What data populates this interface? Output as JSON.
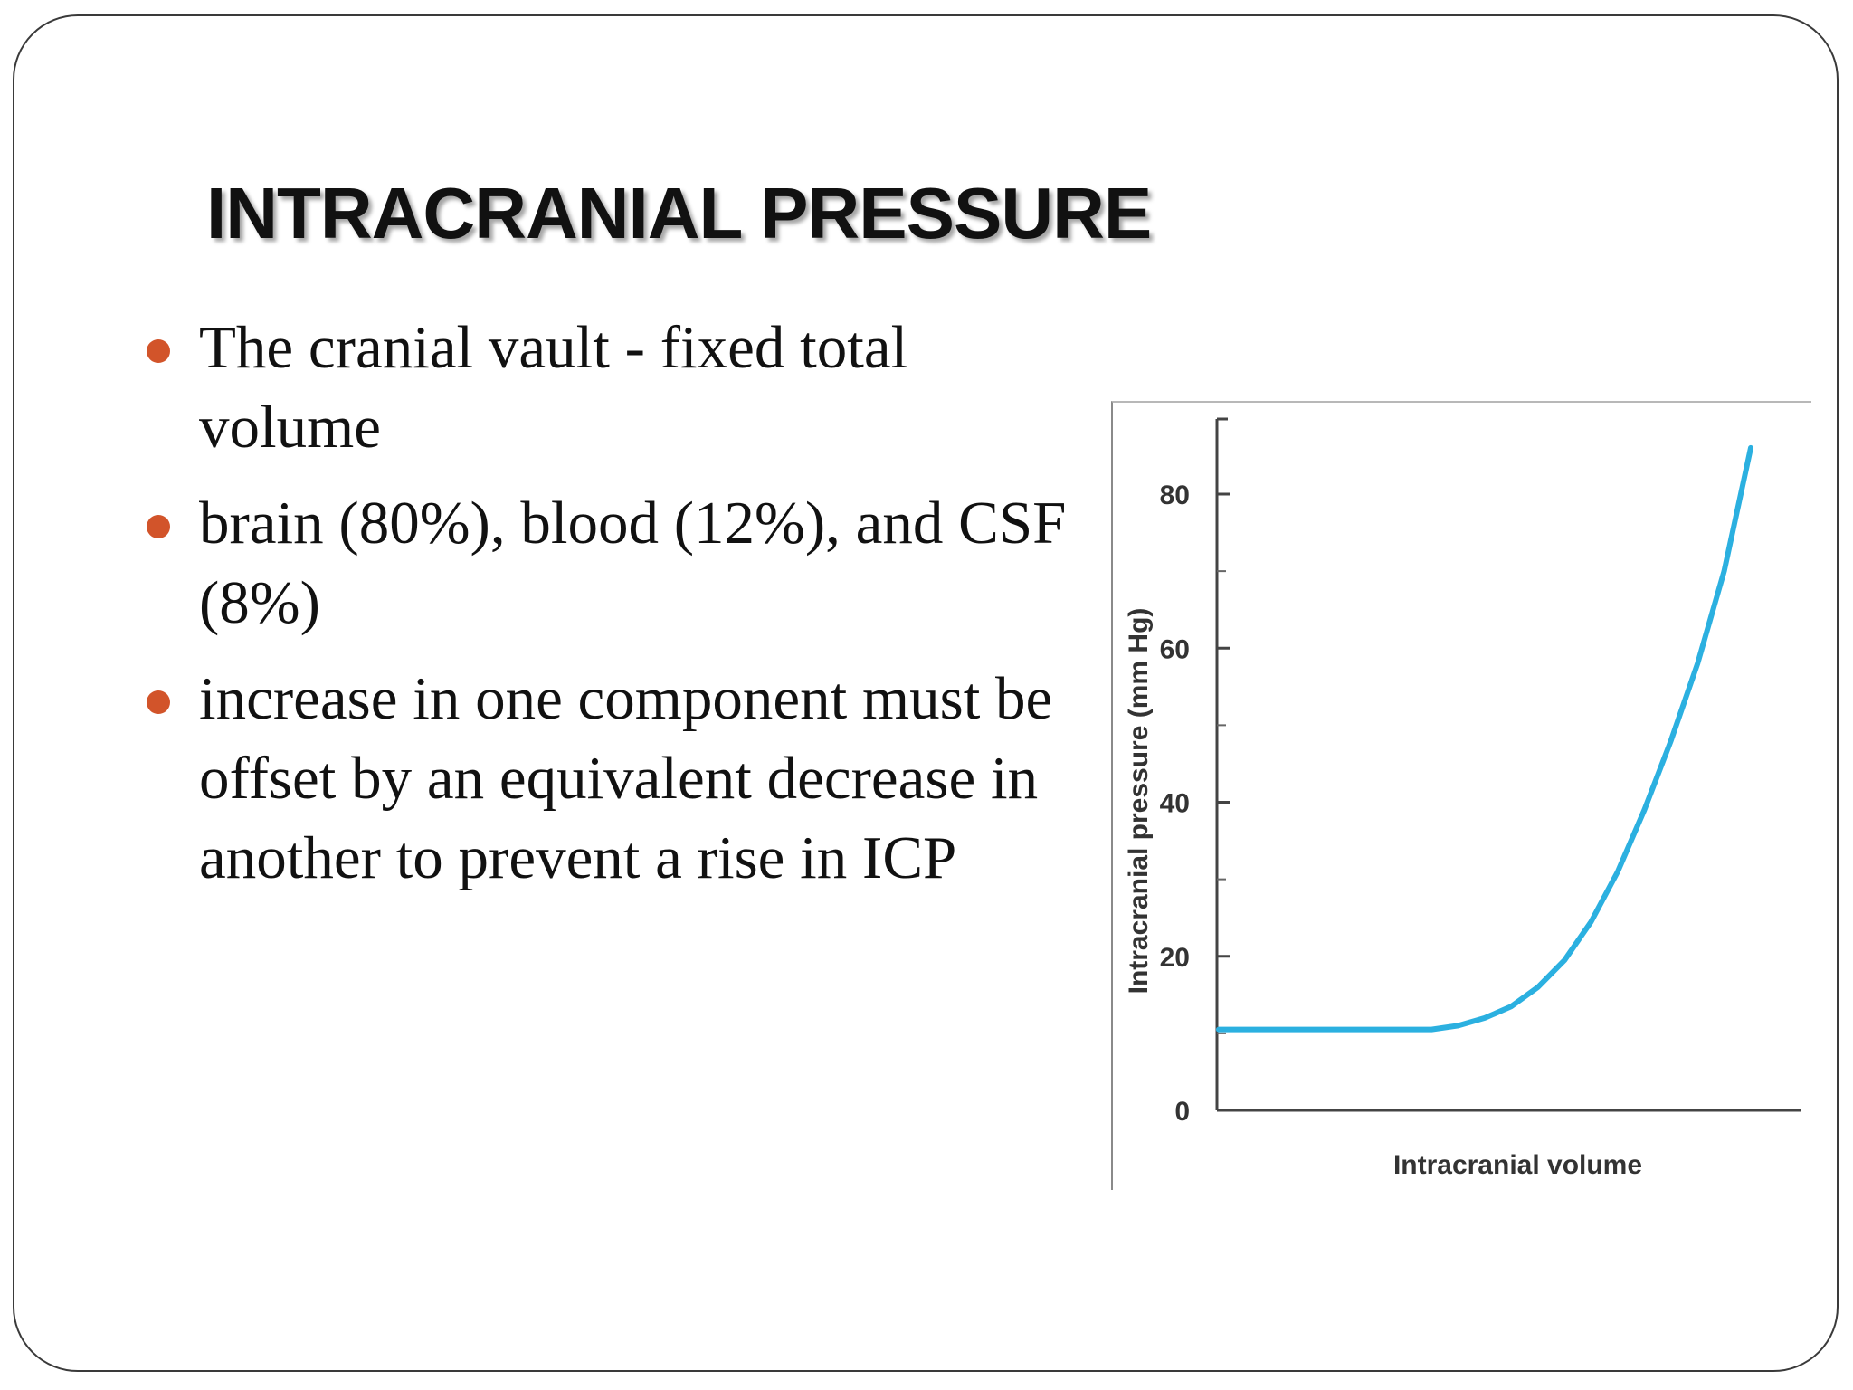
{
  "slide": {
    "title": "INTRACRANIAL PRESSURE",
    "bullet_color": "#d2542a",
    "bullets": [
      {
        "text": "The cranial vault - fixed total volume"
      },
      {
        "text": "brain (80%), blood (12%), and CSF (8%)"
      },
      {
        "text": "increase in one component must be offset by an equivalent decrease in another to prevent a rise in ICP"
      }
    ]
  },
  "chart_data": {
    "type": "line",
    "xlabel": "Intracranial volume",
    "ylabel": "Intracranial pressure (mm Hg)",
    "ylim": [
      0,
      90
    ],
    "yticks": [
      "0",
      "20",
      "40",
      "60",
      "80"
    ],
    "x_tick_labels": [],
    "grid": false,
    "line_color": "#2bb0e0",
    "series": [
      {
        "x": [
          0.0,
          0.1,
          0.2,
          0.3,
          0.4,
          0.45,
          0.5,
          0.55,
          0.6,
          0.65,
          0.7,
          0.75,
          0.8,
          0.85,
          0.9,
          0.95,
          1.0
        ],
        "values": [
          10.5,
          10.5,
          10.5,
          10.5,
          10.5,
          11,
          12,
          13.5,
          16,
          19.5,
          24.5,
          31,
          39,
          48,
          58,
          70,
          86
        ]
      }
    ]
  }
}
